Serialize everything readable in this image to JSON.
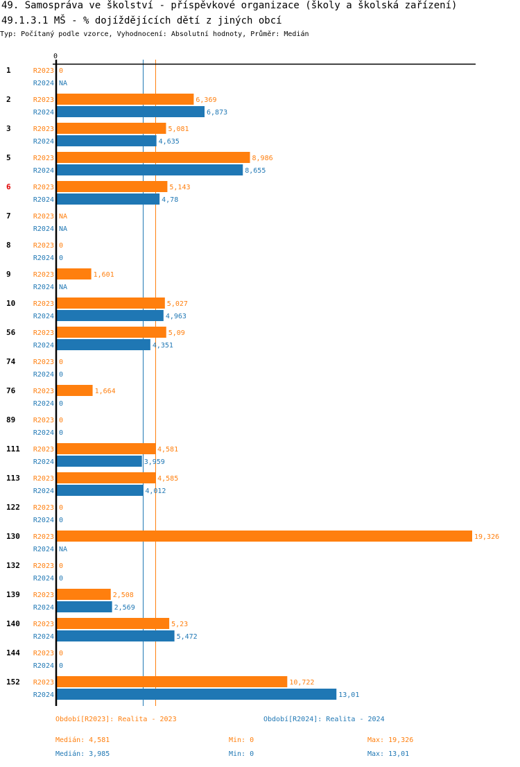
{
  "header": {
    "title": "49. Samospráva ve školství - příspěvkové organizace (školy a školská zařízení)",
    "subtitle": "49.1.3.1 MŠ - % dojíždějících dětí z jiných obcí",
    "meta": "Typ: Počítaný podle vzorce, Vyhodnocení: Absolutní hodnoty, Průměr: Medián"
  },
  "colors": {
    "r2023": "#ff7f0e",
    "r2024": "#1f77b4",
    "highlight": "#e00000",
    "axis": "#000000"
  },
  "chart_data": {
    "type": "bar",
    "orientation": "horizontal",
    "x_tick_label": "0",
    "xlim": [
      0,
      19.326
    ],
    "categories": [
      "1",
      "2",
      "3",
      "5",
      "6",
      "7",
      "8",
      "9",
      "10",
      "56",
      "74",
      "76",
      "89",
      "111",
      "113",
      "122",
      "130",
      "132",
      "139",
      "140",
      "144",
      "152"
    ],
    "highlighted_category": "6",
    "series": [
      {
        "name": "R2023",
        "values": [
          0,
          6.369,
          5.081,
          8.986,
          5.143,
          null,
          0,
          1.601,
          5.027,
          5.09,
          0,
          1.664,
          0,
          4.581,
          4.585,
          0,
          19.326,
          0,
          2.508,
          5.23,
          0,
          10.722
        ],
        "labels": [
          "0",
          "6,369",
          "5,081",
          "8,986",
          "5,143",
          "NA",
          "0",
          "1,601",
          "5,027",
          "5,09",
          "0",
          "1,664",
          "0",
          "4,581",
          "4,585",
          "0",
          "19,326",
          "0",
          "2,508",
          "5,23",
          "0",
          "10,722"
        ]
      },
      {
        "name": "R2024",
        "values": [
          null,
          6.873,
          4.635,
          8.655,
          4.78,
          null,
          0,
          null,
          4.963,
          4.351,
          0,
          0,
          0,
          3.959,
          4.012,
          0,
          null,
          0,
          2.569,
          5.472,
          0,
          13.01
        ],
        "labels": [
          "NA",
          "6,873",
          "4,635",
          "8,655",
          "4,78",
          "NA",
          "0",
          "NA",
          "4,963",
          "4,351",
          "0",
          "0",
          "0",
          "3,959",
          "4,012",
          "0",
          "NA",
          "0",
          "2,569",
          "5,472",
          "0",
          "13,01"
        ]
      }
    ],
    "median_lines": [
      {
        "series": "R2023",
        "value": 4.581
      },
      {
        "series": "R2024",
        "value": 3.985
      }
    ]
  },
  "legend": {
    "r2023": "Období[R2023]: Realita - 2023",
    "r2024": "Období[R2024]: Realita - 2024"
  },
  "stats": {
    "r2023": {
      "median": "Medián: 4,581",
      "min": "Min: 0",
      "max": "Max: 19,326"
    },
    "r2024": {
      "median": "Medián: 3,985",
      "min": "Min: 0",
      "max": "Max: 13,01"
    }
  }
}
